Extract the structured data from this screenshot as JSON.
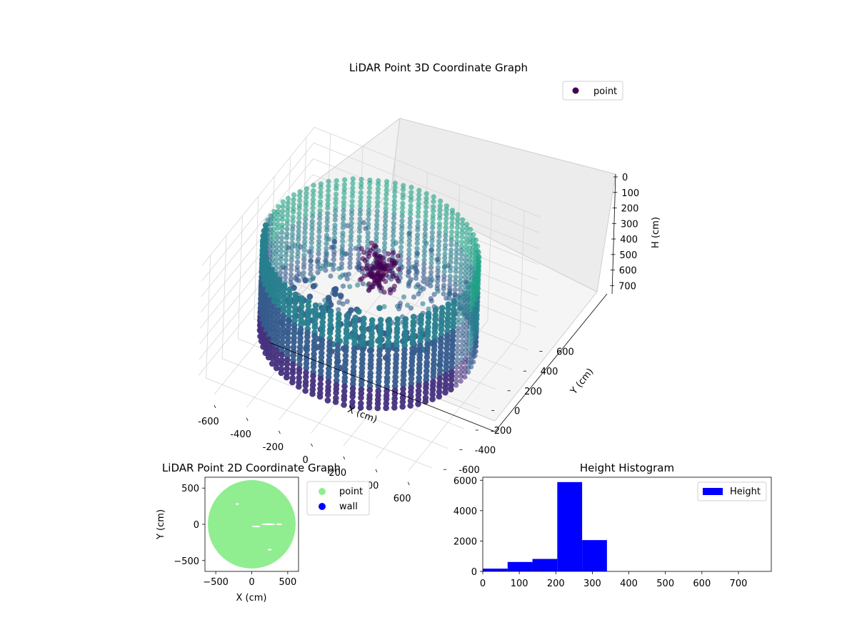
{
  "chart_data": [
    {
      "type": "scatter",
      "projection": "3d",
      "title": "LiDAR Point 3D Coordinate Graph",
      "xlabel": "X (cm)",
      "ylabel": "Y (cm)",
      "zlabel": "H (cm)",
      "xlim": [
        -700,
        700
      ],
      "ylim": [
        -700,
        700
      ],
      "zlim": [
        0,
        780
      ],
      "z_inverted": true,
      "x_ticks": [
        -600,
        -400,
        -200,
        0,
        200,
        400,
        600
      ],
      "y_ticks": [
        -600,
        -400,
        -200,
        0,
        200,
        400,
        600
      ],
      "z_ticks": [
        0,
        100,
        200,
        300,
        400,
        500,
        600,
        700
      ],
      "grid": true,
      "colormap": "viridis",
      "legend": {
        "entries": [
          "point"
        ],
        "placement": "upper-right",
        "marker_color": "#440154"
      },
      "series": [
        {
          "name": "point",
          "description_shape": "cylindrical wall ring of radius about 600 cm from H 50 to 620 cm, plus a central cluster near H 300 cm",
          "wall_radius": 600,
          "wall_h_range": [
            50,
            620
          ],
          "central_cluster": {
            "x": 0,
            "y": 100,
            "h_range": [
              150,
              350
            ]
          }
        }
      ]
    },
    {
      "type": "scatter",
      "title": "LiDAR Point 2D Coordinate Graph",
      "xlabel": "X (cm)",
      "ylabel": "Y (cm)",
      "xlim": [
        -650,
        650
      ],
      "ylim": [
        -650,
        650
      ],
      "x_ticks": [
        -500,
        0,
        500
      ],
      "y_ticks": [
        -500,
        0,
        500
      ],
      "legend": {
        "placement": "outside-right"
      },
      "series": [
        {
          "name": "point",
          "color": "#90ee90",
          "shape": "filled disk",
          "radius": 610
        },
        {
          "name": "wall",
          "color": "#0000ff"
        }
      ]
    },
    {
      "type": "bar",
      "subtype": "histogram",
      "title": "Height Histogram",
      "xlim": [
        0,
        790
      ],
      "ylim": [
        0,
        6200
      ],
      "x_ticks": [
        0,
        100,
        200,
        300,
        400,
        500,
        600,
        700
      ],
      "y_ticks": [
        0,
        2000,
        4000,
        6000
      ],
      "color": "#0000ff",
      "legend": {
        "entries": [
          "Height"
        ],
        "placement": "upper-right"
      },
      "bins": [
        {
          "start": 0,
          "end": 68,
          "count": 180
        },
        {
          "start": 68,
          "end": 136,
          "count": 620
        },
        {
          "start": 136,
          "end": 204,
          "count": 820
        },
        {
          "start": 204,
          "end": 272,
          "count": 5880
        },
        {
          "start": 272,
          "end": 340,
          "count": 2060
        },
        {
          "start": 340,
          "end": 408,
          "count": 0
        },
        {
          "start": 408,
          "end": 476,
          "count": 0
        },
        {
          "start": 476,
          "end": 544,
          "count": 0
        },
        {
          "start": 544,
          "end": 612,
          "count": 0
        },
        {
          "start": 612,
          "end": 680,
          "count": 0
        },
        {
          "start": 680,
          "end": 748,
          "count": 0
        }
      ]
    }
  ]
}
